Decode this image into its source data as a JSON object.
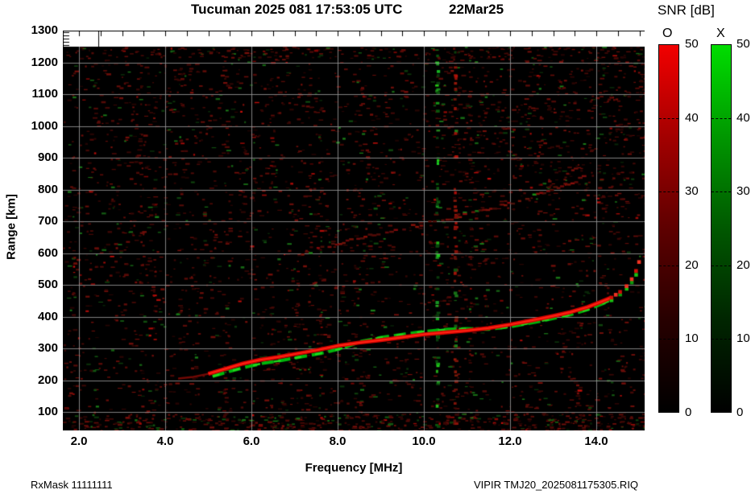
{
  "title": {
    "main": "Tucuman 2025 081 17:53:05 UTC",
    "date": "22Mar25"
  },
  "axes": {
    "x_title": "Frequency [MHz]",
    "y_title": "Range [km]",
    "x_ticks": [
      "2.0",
      "4.0",
      "6.0",
      "8.0",
      "10.0",
      "12.0",
      "14.0"
    ],
    "y_ticks": [
      1300,
      1200,
      1100,
      1000,
      900,
      800,
      700,
      600,
      500,
      400,
      300,
      200,
      100
    ]
  },
  "colorbar": {
    "title": "SNR [dB]",
    "o_label": "O",
    "x_label": "X",
    "ticks": [
      50,
      40,
      30,
      20,
      10,
      0
    ],
    "o_gradient": [
      "#f20000",
      "#a30000",
      "#5e0000",
      "#270000",
      "#000000"
    ],
    "x_gradient": [
      "#00dd00",
      "#009700",
      "#005800",
      "#002500",
      "#000000"
    ]
  },
  "footer": {
    "left": "RxMask 11111111",
    "right": "VIPIR  TMJ20_2025081175305.RIQ"
  },
  "chart_data": {
    "type": "heatmap",
    "description": "VIPIR ionogram: echo SNR versus sounding frequency and virtual range. O-mode echoes red, X-mode echoes green on black background with gray grid.",
    "title": "Tucuman 2025 081 17:53:05 UTC 22Mar25",
    "xlabel": "Frequency [MHz]",
    "ylabel": "Range [km]",
    "xlim": [
      1.6,
      15.1
    ],
    "ylim": [
      40,
      1300
    ],
    "grid": true,
    "snr_scale_db": [
      0,
      50
    ],
    "series": [
      {
        "name": "F-region O-mode trace",
        "color": "#e00000",
        "points": [
          [
            4.3,
            205
          ],
          [
            4.65,
            210
          ],
          [
            5.0,
            220
          ],
          [
            5.4,
            236
          ],
          [
            5.8,
            252
          ],
          [
            6.2,
            264
          ],
          [
            6.6,
            272
          ],
          [
            7.0,
            282
          ],
          [
            7.5,
            294
          ],
          [
            8.0,
            308
          ],
          [
            8.5,
            318
          ],
          [
            9.0,
            326
          ],
          [
            9.5,
            335
          ],
          [
            10.0,
            344
          ],
          [
            10.5,
            350
          ],
          [
            11.0,
            356
          ],
          [
            11.5,
            364
          ],
          [
            12.0,
            375
          ],
          [
            12.5,
            388
          ],
          [
            13.0,
            402
          ],
          [
            13.4,
            414
          ],
          [
            13.8,
            430
          ],
          [
            14.1,
            446
          ],
          [
            14.35,
            460
          ],
          [
            14.55,
            478
          ],
          [
            14.7,
            496
          ],
          [
            14.82,
            518
          ],
          [
            14.92,
            544
          ],
          [
            14.99,
            572
          ],
          [
            15.04,
            592
          ]
        ]
      },
      {
        "name": "F-region X-mode trace",
        "color": "#00c000",
        "points": [
          [
            5.1,
            212
          ],
          [
            5.5,
            228
          ],
          [
            5.9,
            242
          ],
          [
            6.3,
            254
          ],
          [
            6.7,
            262
          ],
          [
            7.1,
            272
          ],
          [
            7.6,
            284
          ],
          [
            8.1,
            300
          ],
          [
            8.55,
            322
          ],
          [
            9.0,
            334
          ],
          [
            9.5,
            344
          ],
          [
            10.0,
            353
          ],
          [
            10.55,
            360
          ],
          [
            11.0,
            362
          ],
          [
            11.5,
            360
          ],
          [
            12.0,
            368
          ],
          [
            12.5,
            380
          ],
          [
            13.0,
            394
          ],
          [
            13.4,
            406
          ],
          [
            13.8,
            422
          ],
          [
            14.1,
            438
          ],
          [
            14.35,
            452
          ],
          [
            14.55,
            470
          ],
          [
            14.7,
            488
          ],
          [
            14.82,
            508
          ],
          [
            14.92,
            532
          ],
          [
            14.99,
            560
          ]
        ]
      },
      {
        "name": "Second reflection trace",
        "color": "#6b120a",
        "points": [
          [
            7.15,
            600
          ],
          [
            7.6,
            618
          ],
          [
            8.1,
            638
          ],
          [
            8.6,
            655
          ],
          [
            9.1,
            670
          ],
          [
            9.6,
            684
          ],
          [
            10.1,
            698
          ],
          [
            10.6,
            712
          ],
          [
            11.1,
            728
          ],
          [
            11.6,
            746
          ],
          [
            12.1,
            766
          ],
          [
            12.6,
            788
          ],
          [
            13.0,
            806
          ],
          [
            13.4,
            826
          ],
          [
            13.75,
            846
          ]
        ]
      }
    ],
    "rfi_columns": [
      {
        "freq_mhz": 10.3,
        "color": "#00aa00"
      },
      {
        "freq_mhz": 10.72,
        "color": "#aa1100"
      }
    ]
  }
}
